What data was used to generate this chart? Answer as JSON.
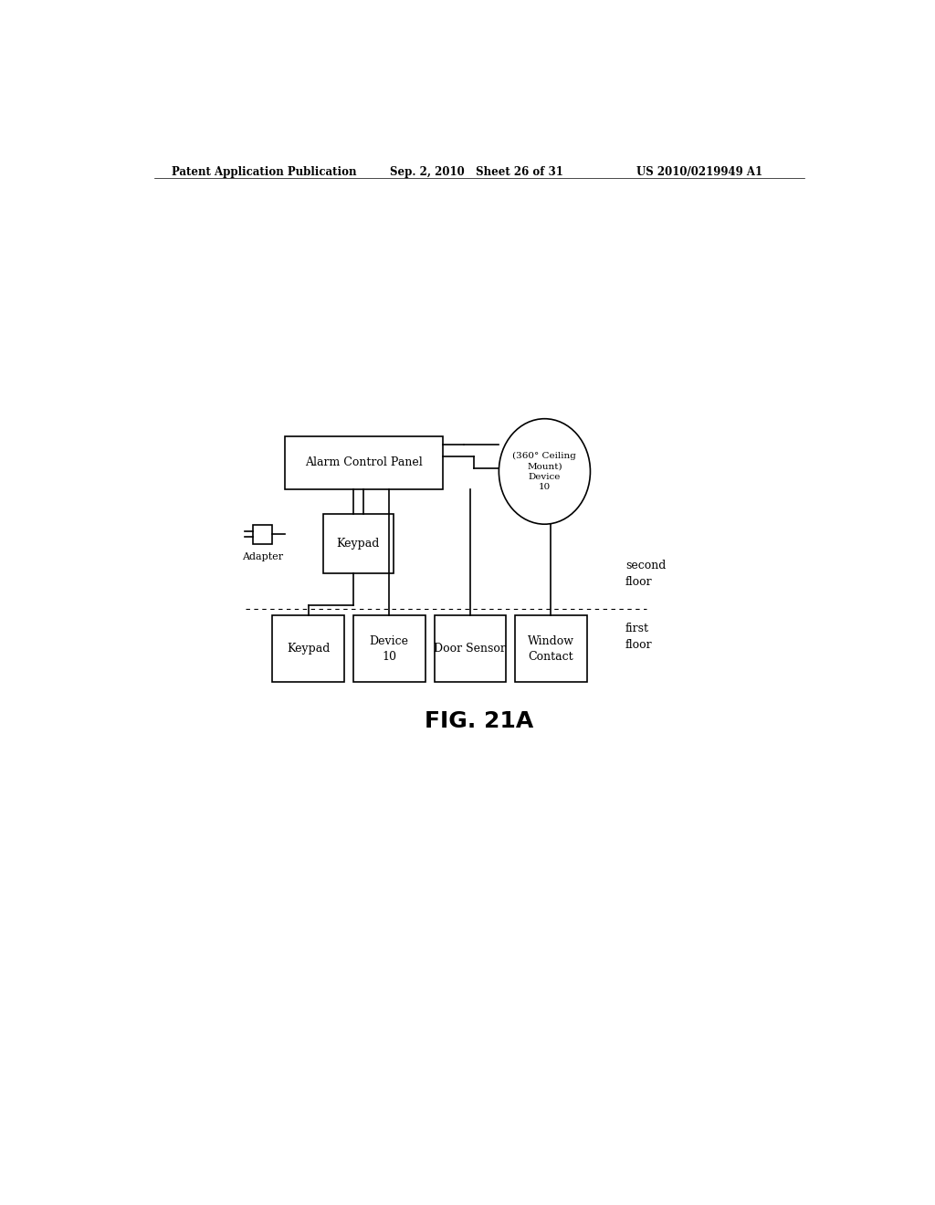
{
  "bg_color": "#ffffff",
  "header_left": "Patent Application Publication",
  "header_mid": "Sep. 2, 2010   Sheet 26 of 31",
  "header_right": "US 2010/0219949 A1",
  "fig_label": "FIG. 21A",
  "alarm_panel_label": "Alarm Control Panel",
  "ceiling_device_label": "(360° Ceiling\nMount)\nDevice\n10",
  "second_floor_keypad_label": "Keypad",
  "adapter_label": "Adapter",
  "first_floor_keypad_label": "Keypad",
  "device10_label": "Device\n10",
  "door_sensor_label": "Door Sensor",
  "window_contact_label": "Window\nContact",
  "second_floor_label": "second\nfloor",
  "first_floor_label": "first\nfloor",
  "page_width": 10.24,
  "page_height": 13.2
}
